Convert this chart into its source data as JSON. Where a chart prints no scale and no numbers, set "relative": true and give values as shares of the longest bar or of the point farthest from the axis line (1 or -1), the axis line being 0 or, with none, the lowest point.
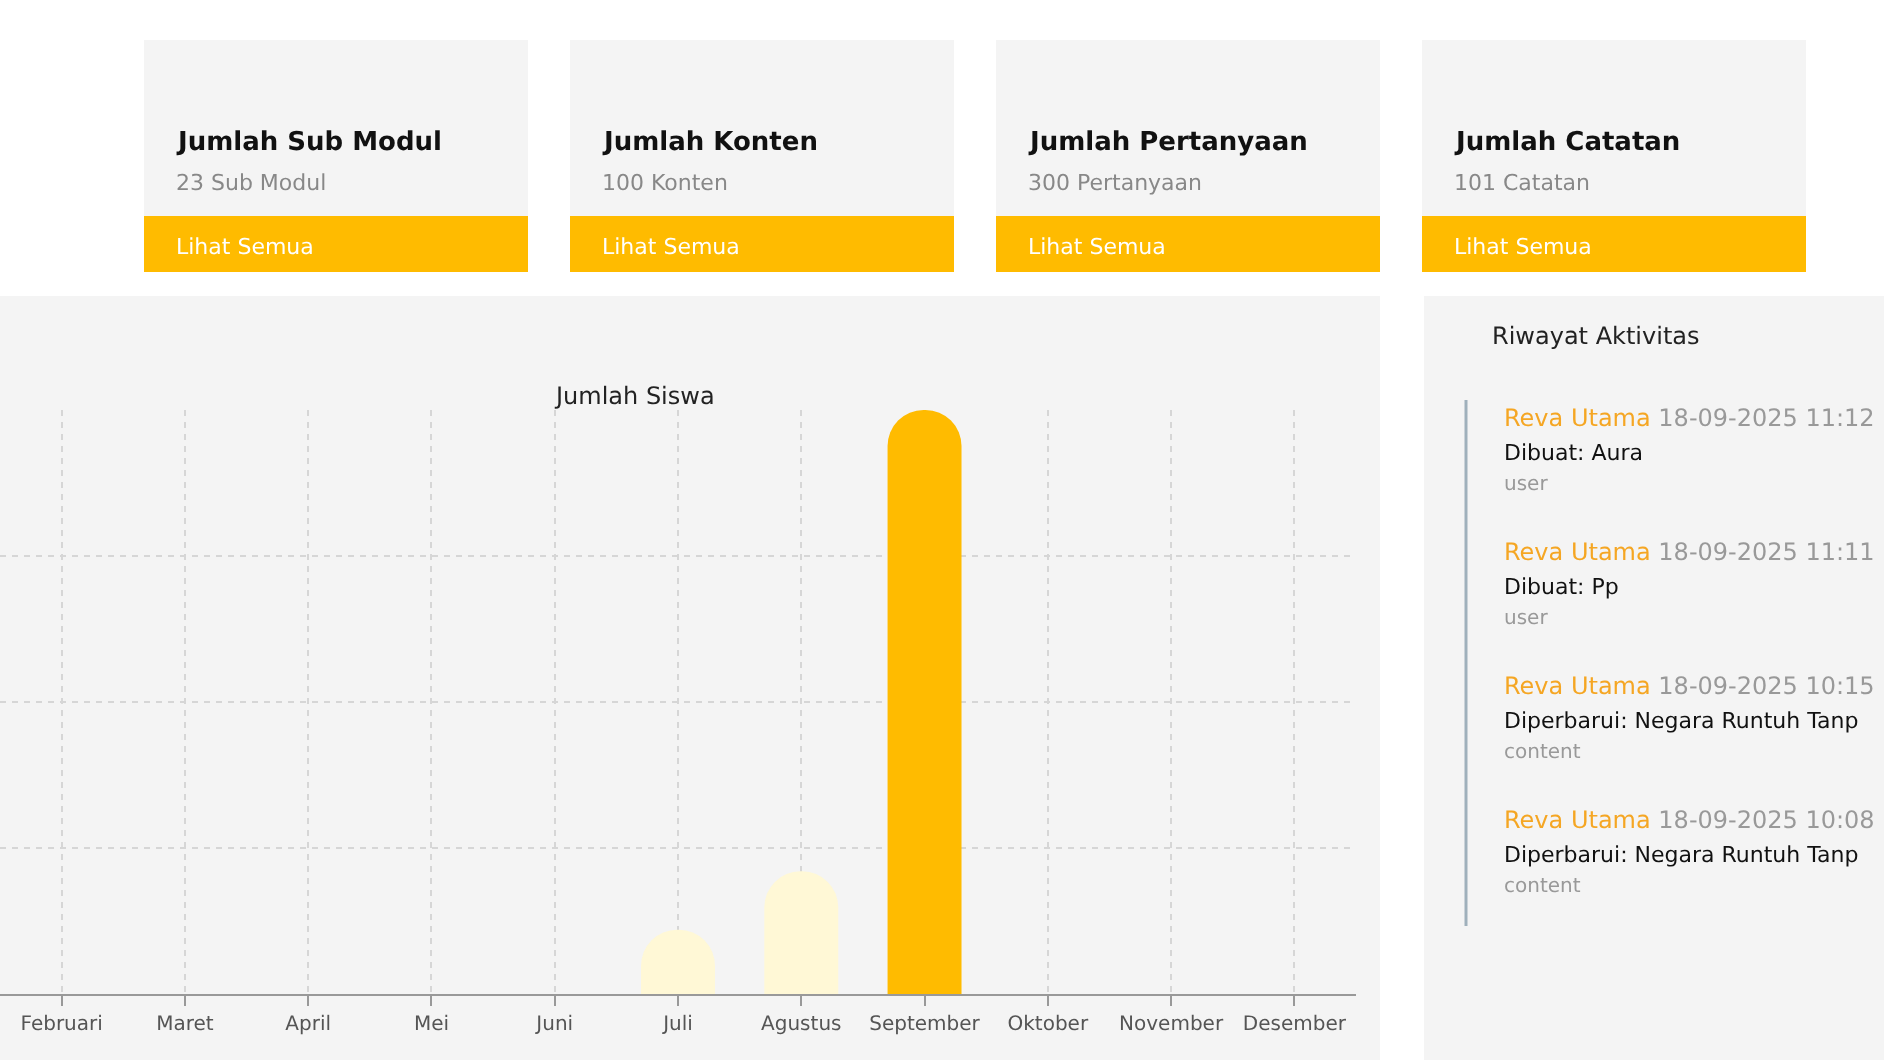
{
  "chart_data": [
    {
      "type": "other",
      "annotations": [
        "Jumlah Sub Modul",
        "23 Sub Modul",
        "Lihat Semua",
        "Jumlah Konten",
        "100 Konten",
        "Lihat Semua",
        "Jumlah Pertanyaan",
        "300 Pertanyaan",
        "Lihat Semua",
        "Jumlah Catatan",
        "101 Catatan",
        "Lihat Semua"
      ]
    },
    {
      "type": "bar",
      "title": "Jumlah Siswa",
      "relative": true,
      "grid": true,
      "categories": [
        "Februari",
        "Maret",
        "April",
        "Mei",
        "Juni",
        "Juli",
        "Agustus",
        "September",
        "Oktober",
        "November",
        "Desember"
      ],
      "values": [
        0,
        0,
        0,
        0,
        0,
        0.11,
        0.21,
        1,
        0,
        0,
        0
      ],
      "colors": [
        "#fff8d6",
        "#fff8d6",
        "#fff8d6",
        "#fff8d6",
        "#fff8d6",
        "#fff8d6",
        "#fff8d6",
        "#ffbb00",
        "#fff8d6",
        "#fff8d6",
        "#fff8d6"
      ]
    },
    {
      "type": "other",
      "title": "Riwayat Aktivitas",
      "annotations": [
        "Reva Utama",
        "18-09-2025 11:12",
        "Dibuat: Aura",
        "user",
        "Reva Utama",
        "18-09-2025 11:11",
        "Dibuat: Pp",
        "user",
        "Reva Utama",
        "18-09-2025 10:15",
        "Diperbarui: Negara Runtuh Tanp",
        "content",
        "Reva Utama",
        "18-09-2025 10:08",
        "Diperbarui: Negara Runtuh Tanp",
        "content"
      ]
    }
  ]
}
